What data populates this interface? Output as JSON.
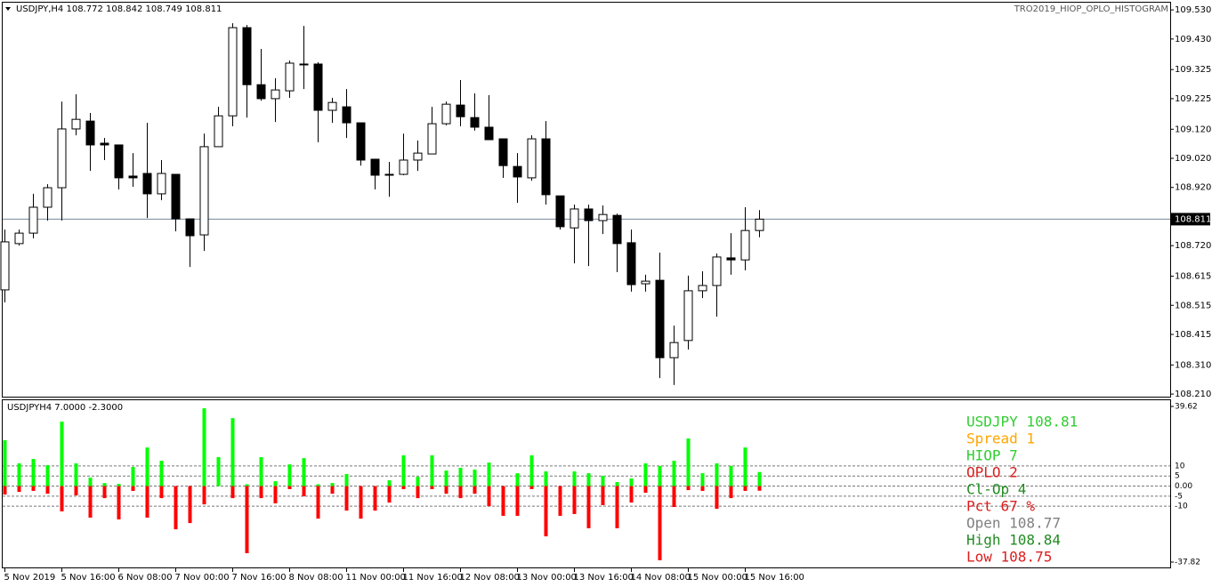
{
  "chart_data": [
    {
      "type": "candlestick",
      "title": "USDJPY,H4  108.772 108.842 108.749 108.811",
      "indicator": "TRO2019_HIOP_OPLO_HISTOGRAM",
      "categories": [
        "5 Nov 2019",
        null,
        null,
        null,
        "5 Nov 16:00",
        null,
        null,
        null,
        "6 Nov 08:00",
        null,
        null,
        null,
        "7 Nov 00:00",
        null,
        null,
        null,
        "7 Nov 16:00",
        null,
        null,
        null,
        "8 Nov 08:00",
        null,
        null,
        null,
        "11 Nov 00:00",
        null,
        null,
        null,
        "11 Nov 16:00",
        null,
        null,
        null,
        "12 Nov 08:00",
        null,
        null,
        null,
        "13 Nov 00:00",
        null,
        null,
        null,
        "13 Nov 16:00",
        null,
        null,
        null,
        "14 Nov 08:00",
        null,
        null,
        null,
        "15 Nov 00:00",
        null,
        null,
        null,
        "15 Nov 16:00",
        null
      ],
      "open": [
        108.568,
        108.727,
        108.763,
        108.852,
        108.919,
        109.121,
        109.148,
        109.072,
        109.066,
        108.959,
        108.968,
        108.898,
        108.965,
        108.812,
        108.757,
        109.06,
        109.166,
        109.469,
        109.273,
        109.225,
        109.252,
        109.344,
        109.344,
        109.185,
        109.197,
        109.142,
        109.017,
        108.965,
        108.965,
        109.014,
        109.035,
        109.139,
        109.203,
        109.16,
        109.127,
        109.087,
        108.992,
        108.953,
        109.087,
        108.891,
        108.781,
        108.846,
        108.806,
        108.824,
        108.73,
        108.589,
        108.601,
        108.335,
        108.394,
        108.565,
        108.583,
        108.678,
        108.671,
        108.772
      ],
      "high": [
        108.775,
        108.775,
        108.898,
        108.931,
        109.215,
        109.24,
        109.176,
        109.09,
        109.066,
        109.038,
        109.142,
        109.014,
        108.965,
        108.812,
        109.105,
        109.197,
        109.484,
        109.478,
        109.396,
        109.295,
        109.356,
        109.475,
        109.35,
        109.228,
        109.258,
        109.142,
        109.017,
        109.008,
        109.105,
        109.081,
        109.197,
        109.215,
        109.289,
        109.243,
        109.237,
        109.087,
        109.038,
        109.099,
        109.148,
        108.891,
        108.861,
        108.861,
        108.858,
        108.83,
        108.775,
        108.62,
        108.696,
        108.445,
        108.617,
        108.632,
        108.693,
        108.763,
        108.852,
        108.842
      ],
      "low": [
        108.525,
        108.72,
        108.745,
        108.806,
        108.806,
        109.099,
        108.977,
        109.014,
        108.913,
        108.922,
        108.815,
        108.876,
        108.769,
        108.647,
        108.702,
        109.06,
        109.13,
        109.16,
        109.218,
        109.145,
        109.228,
        109.258,
        109.075,
        109.142,
        109.09,
        108.995,
        108.913,
        108.888,
        108.962,
        108.977,
        109.035,
        109.133,
        109.13,
        109.115,
        109.084,
        108.953,
        108.867,
        108.943,
        108.861,
        108.775,
        108.659,
        108.65,
        108.76,
        108.629,
        108.562,
        108.562,
        108.265,
        108.241,
        108.363,
        108.54,
        108.476,
        108.62,
        108.635,
        108.749
      ],
      "close": [
        108.733,
        108.763,
        108.852,
        108.919,
        109.121,
        109.154,
        109.066,
        109.066,
        108.953,
        108.953,
        108.898,
        108.968,
        108.812,
        108.754,
        109.06,
        109.166,
        109.469,
        109.273,
        109.225,
        109.255,
        109.347,
        109.341,
        109.185,
        109.212,
        109.142,
        109.014,
        108.962,
        108.962,
        109.014,
        109.038,
        109.139,
        109.206,
        109.163,
        109.127,
        109.084,
        108.995,
        108.956,
        109.087,
        108.895,
        108.785,
        108.846,
        108.806,
        108.827,
        108.727,
        108.586,
        108.598,
        108.335,
        108.387,
        108.565,
        108.583,
        108.681,
        108.671,
        108.772,
        108.811
      ],
      "up_color": "#ffffff",
      "down_color": "#000000",
      "line_color": "#000000",
      "ylim": [
        108.198,
        109.564
      ],
      "yticks": [
        {
          "value": 109.53,
          "label": "109.530"
        },
        {
          "value": 109.43,
          "label": "109.430"
        },
        {
          "value": 109.325,
          "label": "109.325"
        },
        {
          "value": 109.225,
          "label": "109.225"
        },
        {
          "value": 109.12,
          "label": "109.120"
        },
        {
          "value": 109.02,
          "label": "109.020"
        },
        {
          "value": 108.92,
          "label": "108.920"
        },
        {
          "value": 108.72,
          "label": "108.720"
        },
        {
          "value": 108.615,
          "label": "108.615"
        },
        {
          "value": 108.515,
          "label": "108.515"
        },
        {
          "value": 108.415,
          "label": "108.415"
        },
        {
          "value": 108.31,
          "label": "108.310"
        },
        {
          "value": 108.21,
          "label": "108.210"
        }
      ],
      "last_price": {
        "value": 108.811,
        "label": "108.811"
      }
    },
    {
      "type": "bar",
      "title": "USDJPYH4 7.0000 -2.3000",
      "series": [
        {
          "color": "#00ff00",
          "values": [
            22.8,
            11.3,
            13.5,
            10.4,
            32.1,
            11.3,
            4.2,
            1.5,
            1.1,
            9.5,
            19.2,
            12.6,
            0,
            0,
            38.7,
            14.4,
            33.8,
            0.9,
            14.4,
            2.4,
            10.8,
            13.9,
            0.9,
            1.5,
            6.0,
            0,
            0,
            2.9,
            15.3,
            4.6,
            15.3,
            7.7,
            9.1,
            8.2,
            11.7,
            0,
            6.4,
            15.3,
            7.3,
            0,
            7.3,
            6.4,
            5.1,
            2.0,
            3.8,
            11.3,
            10.0,
            12.6,
            23.7,
            6.4,
            11.3,
            10.0,
            19.2,
            7
          ]
        },
        {
          "color": "#ff0000",
          "values": [
            -4.2,
            -2.9,
            -2.4,
            -3.8,
            -12.6,
            -4.6,
            -15.7,
            -6.0,
            -16.6,
            -2.4,
            -15.7,
            -6.0,
            -21.5,
            -18.4,
            -9.1,
            0,
            -6.0,
            -33.4,
            -6.0,
            -8.6,
            -1.5,
            -5.1,
            -16.2,
            -3.8,
            -12.2,
            -16.2,
            -12.2,
            -8.2,
            -1.5,
            -6.0,
            -1.5,
            -3.8,
            -6.0,
            -3.8,
            -10.0,
            -14.8,
            -14.8,
            -1.5,
            -25.0,
            -14.8,
            -13.9,
            -21.0,
            -9.5,
            -21.0,
            -8.2,
            -3.3,
            -36.9,
            -10.4,
            -2.0,
            -2.4,
            -11.3,
            -6.0,
            -2.4,
            -2.3
          ]
        }
      ],
      "ylim": [
        -37.82,
        39.62
      ],
      "yticks": [
        39.62,
        10,
        5,
        {
          "value": 0,
          "label": "0.00"
        },
        -5,
        -10,
        -37.82
      ],
      "annotations": [
        {
          "text": "USDJPY 108.81",
          "color": "#32cd32"
        },
        {
          "text": "Spread 1",
          "color": "#ffa500"
        },
        {
          "text": "HIOP 7",
          "color": "#32cd32"
        },
        {
          "text": "OPLO 2",
          "color": "#dc1e1e"
        },
        {
          "text": "Cl-Op 4",
          "color": "#228b22"
        },
        {
          "text": "Pct 67 %",
          "color": "#dc1e1e"
        },
        {
          "text": "Open 108.77",
          "color": "#808080"
        },
        {
          "text": "High 108.84",
          "color": "#228b22"
        },
        {
          "text": "Low 108.75",
          "color": "#dc1e1e"
        }
      ]
    }
  ]
}
